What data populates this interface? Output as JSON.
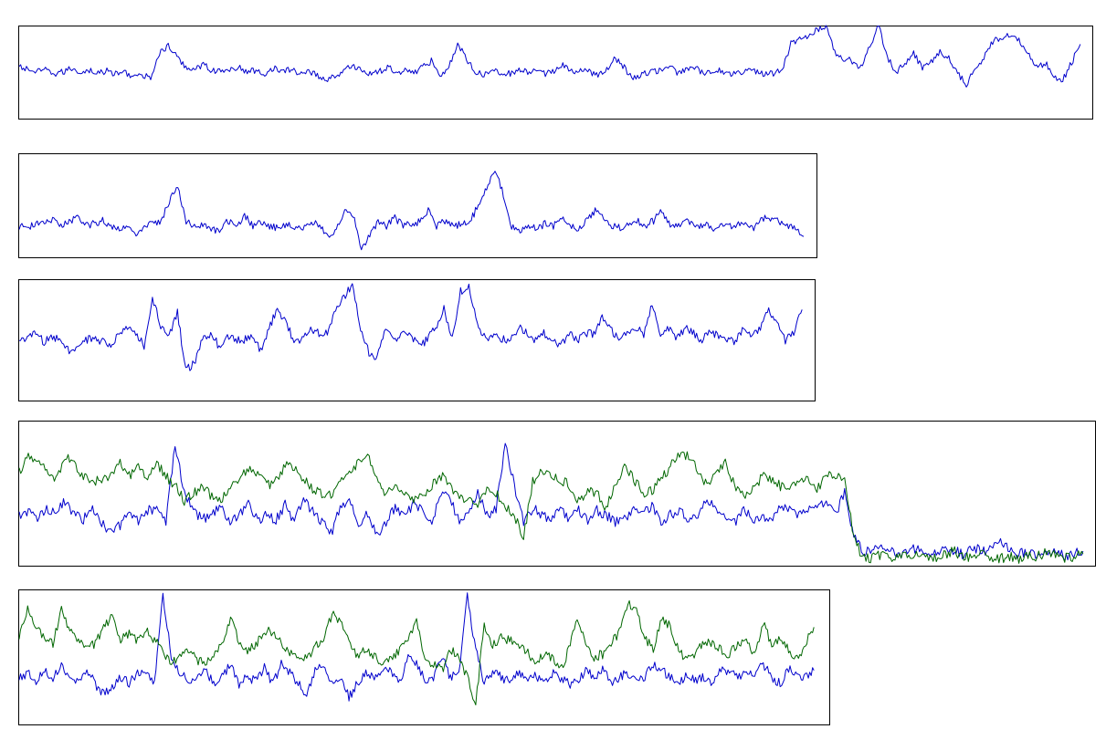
{
  "colors": {
    "series_blue": "#0000cc",
    "series_green": "#006600",
    "frame": "#000000"
  },
  "chart_data": [
    {
      "type": "line",
      "title": "",
      "xlabel": "",
      "ylabel": "",
      "grid": false,
      "legend": "none",
      "series": [
        {
          "color": "#0000cc",
          "sampled_y": [
            0.55,
            0.53,
            0.5,
            0.52,
            0.48,
            0.5,
            0.54,
            0.5,
            0.52,
            0.49,
            0.51,
            0.48,
            0.5,
            0.46,
            0.45,
            0.45,
            0.7,
            0.78,
            0.66,
            0.55,
            0.54,
            0.58,
            0.52,
            0.5,
            0.53,
            0.55,
            0.5,
            0.52,
            0.48,
            0.55,
            0.5,
            0.53,
            0.48,
            0.52,
            0.46,
            0.42,
            0.46,
            0.5,
            0.58,
            0.52,
            0.48,
            0.5,
            0.55,
            0.5,
            0.52,
            0.5,
            0.55,
            0.62,
            0.48,
            0.55,
            0.8,
            0.65,
            0.5,
            0.48,
            0.52,
            0.5,
            0.48,
            0.52,
            0.5,
            0.5,
            0.48,
            0.52,
            0.58,
            0.5,
            0.52,
            0.5,
            0.48,
            0.52,
            0.65,
            0.55,
            0.42,
            0.48,
            0.5,
            0.52,
            0.56,
            0.5,
            0.52,
            0.55,
            0.48,
            0.5,
            0.52,
            0.48,
            0.5,
            0.52,
            0.5,
            0.48,
            0.48,
            0.52,
            0.8,
            0.85,
            0.9,
            0.95,
            1.0,
            0.72,
            0.65,
            0.62,
            0.55,
            0.78,
            1.0,
            0.65,
            0.5,
            0.6,
            0.7,
            0.55,
            0.62,
            0.72,
            0.65,
            0.5,
            0.35,
            0.55,
            0.65,
            0.82,
            0.88,
            0.9,
            0.85,
            0.72,
            0.55,
            0.6,
            0.45,
            0.42,
            0.6,
            0.8
          ]
        }
      ]
    },
    {
      "type": "line",
      "title": "",
      "xlabel": "",
      "ylabel": "",
      "grid": false,
      "legend": "none",
      "series": [
        {
          "color": "#0000cc",
          "sampled_y": [
            0.3,
            0.28,
            0.33,
            0.32,
            0.36,
            0.3,
            0.35,
            0.38,
            0.3,
            0.33,
            0.35,
            0.3,
            0.28,
            0.3,
            0.2,
            0.3,
            0.32,
            0.35,
            0.55,
            0.68,
            0.35,
            0.3,
            0.3,
            0.28,
            0.25,
            0.35,
            0.3,
            0.4,
            0.3,
            0.35,
            0.3,
            0.28,
            0.32,
            0.3,
            0.28,
            0.34,
            0.3,
            0.2,
            0.28,
            0.45,
            0.4,
            0.08,
            0.2,
            0.35,
            0.3,
            0.38,
            0.3,
            0.32,
            0.34,
            0.45,
            0.3,
            0.35,
            0.3,
            0.32,
            0.34,
            0.5,
            0.65,
            0.85,
            0.6,
            0.3,
            0.25,
            0.3,
            0.28,
            0.32,
            0.3,
            0.38,
            0.3,
            0.28,
            0.35,
            0.45,
            0.4,
            0.3,
            0.28,
            0.32,
            0.35,
            0.3,
            0.35,
            0.45,
            0.3,
            0.32,
            0.35,
            0.3,
            0.32,
            0.28,
            0.3,
            0.3,
            0.32,
            0.3,
            0.28,
            0.38,
            0.35,
            0.35,
            0.3,
            0.3,
            0.2
          ]
        }
      ]
    },
    {
      "type": "line",
      "title": "",
      "xlabel": "",
      "ylabel": "",
      "grid": false,
      "legend": "none",
      "series": [
        {
          "color": "#0000cc",
          "sampled_y": [
            0.5,
            0.52,
            0.55,
            0.48,
            0.52,
            0.5,
            0.4,
            0.45,
            0.5,
            0.52,
            0.48,
            0.45,
            0.55,
            0.6,
            0.55,
            0.45,
            0.85,
            0.6,
            0.55,
            0.72,
            0.25,
            0.3,
            0.5,
            0.55,
            0.45,
            0.52,
            0.5,
            0.5,
            0.55,
            0.4,
            0.6,
            0.75,
            0.65,
            0.48,
            0.52,
            0.6,
            0.55,
            0.55,
            0.75,
            0.85,
            0.95,
            0.6,
            0.4,
            0.35,
            0.6,
            0.5,
            0.55,
            0.55,
            0.45,
            0.5,
            0.6,
            0.75,
            0.5,
            0.9,
            0.95,
            0.62,
            0.5,
            0.55,
            0.5,
            0.5,
            0.6,
            0.55,
            0.5,
            0.55,
            0.5,
            0.45,
            0.55,
            0.5,
            0.55,
            0.55,
            0.7,
            0.6,
            0.5,
            0.55,
            0.6,
            0.55,
            0.8,
            0.55,
            0.6,
            0.52,
            0.6,
            0.55,
            0.5,
            0.58,
            0.52,
            0.5,
            0.48,
            0.6,
            0.55,
            0.6,
            0.75,
            0.62,
            0.5,
            0.55,
            0.75
          ]
        }
      ]
    },
    {
      "type": "line",
      "title": "",
      "xlabel": "",
      "ylabel": "",
      "grid": false,
      "legend": "none",
      "series": [
        {
          "color": "#0000cc",
          "sampled_y": [
            0.35,
            0.38,
            0.32,
            0.4,
            0.35,
            0.45,
            0.35,
            0.32,
            0.4,
            0.3,
            0.22,
            0.28,
            0.35,
            0.3,
            0.38,
            0.4,
            0.3,
            0.85,
            0.5,
            0.38,
            0.32,
            0.35,
            0.4,
            0.3,
            0.35,
            0.45,
            0.3,
            0.35,
            0.32,
            0.42,
            0.3,
            0.45,
            0.38,
            0.3,
            0.22,
            0.4,
            0.45,
            0.3,
            0.35,
            0.2,
            0.3,
            0.4,
            0.35,
            0.42,
            0.38,
            0.3,
            0.5,
            0.45,
            0.32,
            0.35,
            0.5,
            0.35,
            0.38,
            0.85,
            0.55,
            0.3,
            0.4,
            0.35,
            0.32,
            0.38,
            0.32,
            0.38,
            0.3,
            0.38,
            0.35,
            0.3,
            0.32,
            0.4,
            0.35,
            0.42,
            0.3,
            0.35,
            0.38,
            0.32,
            0.35,
            0.45,
            0.4,
            0.35,
            0.3,
            0.38,
            0.32,
            0.35,
            0.3,
            0.42,
            0.38,
            0.35,
            0.4,
            0.38,
            0.45,
            0.35,
            0.5,
            0.2,
            0.1,
            0.1,
            0.12,
            0.1,
            0.08,
            0.1,
            0.12,
            0.08,
            0.1,
            0.12,
            0.1,
            0.08,
            0.12,
            0.1,
            0.12,
            0.18,
            0.1,
            0.08,
            0.1,
            0.08,
            0.1,
            0.1,
            0.06,
            0.08,
            0.1
          ]
        },
        {
          "color": "#006600",
          "sampled_y": [
            0.65,
            0.75,
            0.72,
            0.65,
            0.6,
            0.75,
            0.7,
            0.62,
            0.58,
            0.6,
            0.62,
            0.7,
            0.62,
            0.68,
            0.62,
            0.7,
            0.62,
            0.55,
            0.45,
            0.5,
            0.55,
            0.48,
            0.45,
            0.52,
            0.6,
            0.68,
            0.62,
            0.55,
            0.58,
            0.7,
            0.68,
            0.6,
            0.52,
            0.5,
            0.48,
            0.58,
            0.62,
            0.72,
            0.75,
            0.6,
            0.5,
            0.55,
            0.5,
            0.45,
            0.48,
            0.55,
            0.62,
            0.55,
            0.48,
            0.45,
            0.4,
            0.55,
            0.5,
            0.4,
            0.35,
            0.2,
            0.58,
            0.65,
            0.62,
            0.6,
            0.55,
            0.45,
            0.52,
            0.5,
            0.4,
            0.55,
            0.68,
            0.6,
            0.5,
            0.52,
            0.6,
            0.68,
            0.78,
            0.75,
            0.65,
            0.55,
            0.62,
            0.72,
            0.55,
            0.48,
            0.52,
            0.62,
            0.6,
            0.55,
            0.52,
            0.6,
            0.62,
            0.52,
            0.65,
            0.6,
            0.62,
            0.2,
            0.05,
            0.05,
            0.08,
            0.05,
            0.06,
            0.08,
            0.08,
            0.05,
            0.06,
            0.08,
            0.1,
            0.06,
            0.05,
            0.08,
            0.06,
            0.05,
            0.06,
            0.05,
            0.08,
            0.06,
            0.1,
            0.08,
            0.05,
            0.06,
            0.08
          ]
        }
      ]
    },
    {
      "type": "line",
      "title": "",
      "xlabel": "",
      "ylabel": "",
      "grid": false,
      "legend": "none",
      "series": [
        {
          "color": "#0000cc",
          "sampled_y": [
            0.35,
            0.38,
            0.32,
            0.4,
            0.35,
            0.45,
            0.35,
            0.32,
            0.4,
            0.3,
            0.22,
            0.28,
            0.35,
            0.3,
            0.38,
            0.4,
            0.3,
            0.95,
            0.5,
            0.38,
            0.32,
            0.35,
            0.4,
            0.3,
            0.35,
            0.45,
            0.3,
            0.35,
            0.32,
            0.42,
            0.3,
            0.45,
            0.38,
            0.3,
            0.22,
            0.4,
            0.45,
            0.3,
            0.35,
            0.2,
            0.3,
            0.4,
            0.35,
            0.42,
            0.38,
            0.3,
            0.5,
            0.45,
            0.32,
            0.35,
            0.5,
            0.35,
            0.38,
            0.95,
            0.55,
            0.3,
            0.4,
            0.35,
            0.32,
            0.38,
            0.32,
            0.38,
            0.3,
            0.38,
            0.35,
            0.3,
            0.32,
            0.4,
            0.35,
            0.42,
            0.3,
            0.35,
            0.38,
            0.32,
            0.35,
            0.45,
            0.4,
            0.35,
            0.3,
            0.38,
            0.32,
            0.35,
            0.3,
            0.42,
            0.38,
            0.35,
            0.4,
            0.38,
            0.45,
            0.35,
            0.3,
            0.42,
            0.38,
            0.35,
            0.4
          ]
        },
        {
          "color": "#006600",
          "sampled_y": [
            0.65,
            0.85,
            0.72,
            0.65,
            0.6,
            0.85,
            0.7,
            0.62,
            0.58,
            0.6,
            0.72,
            0.8,
            0.62,
            0.68,
            0.62,
            0.7,
            0.62,
            0.55,
            0.45,
            0.5,
            0.55,
            0.48,
            0.45,
            0.52,
            0.6,
            0.78,
            0.62,
            0.55,
            0.58,
            0.7,
            0.68,
            0.6,
            0.52,
            0.5,
            0.48,
            0.58,
            0.62,
            0.82,
            0.75,
            0.6,
            0.5,
            0.55,
            0.5,
            0.45,
            0.48,
            0.55,
            0.62,
            0.75,
            0.48,
            0.45,
            0.4,
            0.55,
            0.5,
            0.35,
            0.15,
            0.75,
            0.58,
            0.65,
            0.62,
            0.6,
            0.55,
            0.45,
            0.52,
            0.5,
            0.4,
            0.55,
            0.78,
            0.6,
            0.5,
            0.52,
            0.6,
            0.68,
            0.9,
            0.85,
            0.65,
            0.55,
            0.8,
            0.72,
            0.55,
            0.48,
            0.52,
            0.62,
            0.6,
            0.55,
            0.52,
            0.6,
            0.62,
            0.52,
            0.75,
            0.6,
            0.62,
            0.55,
            0.48,
            0.6,
            0.72
          ]
        }
      ]
    }
  ]
}
